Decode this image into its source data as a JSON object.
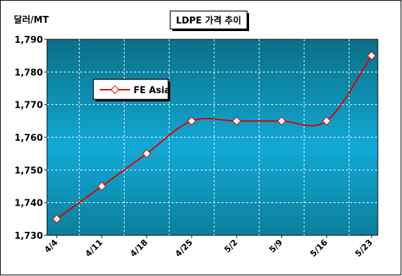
{
  "chart_data": {
    "type": "line",
    "title": "LDPE 가격 추이",
    "ylabel": "달러/MT",
    "xlabel": "",
    "x": [
      "4/4",
      "4/11",
      "4/18",
      "4/25",
      "5/2",
      "5/9",
      "5/16",
      "5/23"
    ],
    "ylim": [
      1730,
      1790
    ],
    "yticks": [
      "1,730",
      "1,740",
      "1,750",
      "1,760",
      "1,770",
      "1,780",
      "1,790"
    ],
    "ytick_values": [
      1730,
      1740,
      1750,
      1760,
      1770,
      1780,
      1790
    ],
    "series": [
      {
        "name": "FE Asia",
        "values": [
          1735,
          1745,
          1755,
          1765,
          1765,
          1765,
          1765,
          1785
        ]
      }
    ],
    "legend_position": "top-left",
    "grid": true,
    "colors": {
      "line": "#e00000",
      "plot_top": "#0b6f85",
      "plot_mid": "#12a9d6",
      "plot_bottom": "#0c7f9b",
      "grid": "#ffffff"
    }
  }
}
